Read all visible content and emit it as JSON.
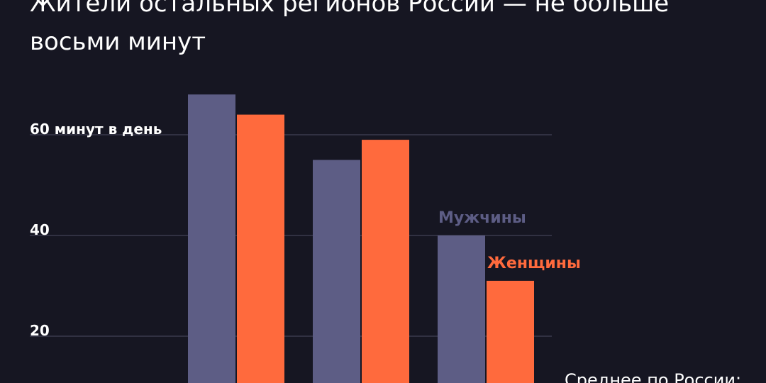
{
  "title": "Жители остальных регионов России — не больше восьми минут",
  "note": "Среднее по России:",
  "colors": {
    "background": "#161622",
    "men": "#5d5d85",
    "women": "#ff6a3d",
    "grid": "#3a3a4c"
  },
  "chart_data": {
    "type": "bar",
    "categories": [
      "",
      "",
      ""
    ],
    "series": [
      {
        "name": "Мужчины",
        "values": [
          68,
          55,
          40
        ]
      },
      {
        "name": "Женщины",
        "values": [
          64,
          59,
          31
        ]
      }
    ],
    "yticks": [
      {
        "value": 60,
        "label": "60 минут в день"
      },
      {
        "value": 40,
        "label": "40"
      },
      {
        "value": 20,
        "label": "20"
      }
    ],
    "ylim": [
      0,
      75
    ],
    "grid": true,
    "legend": "inline labels above last category bars"
  }
}
